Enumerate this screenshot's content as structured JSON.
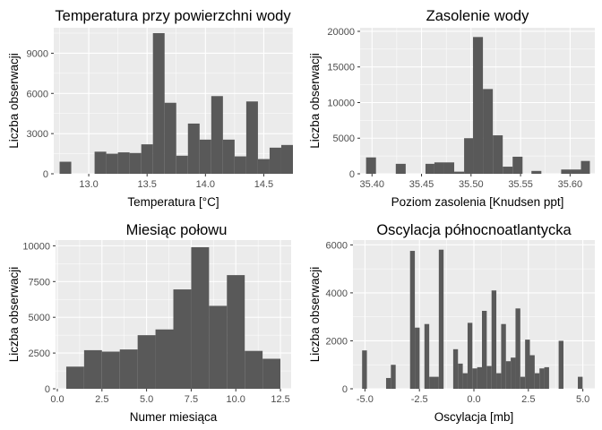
{
  "colors": {
    "panel_background": "#ebebeb",
    "grid_major": "#ffffff",
    "bar_fill": "#595959",
    "tick_label": "#4d4d4d",
    "tick_mark": "#333333",
    "text": "#000000"
  },
  "chart_data": [
    {
      "type": "bar",
      "title": "Temperatura przy powierzchni wody",
      "xlabel": "Temperatura [°C]",
      "ylabel": "Liczba obserwacji",
      "xlim": [
        12.7,
        14.75
      ],
      "ylim": [
        0,
        10900
      ],
      "x_ticks": [
        13.0,
        13.5,
        14.0,
        14.5
      ],
      "x_tick_labels": [
        "13.0",
        "13.5",
        "14.0",
        "14.5"
      ],
      "y_ticks": [
        0,
        3000,
        6000,
        9000
      ],
      "y_tick_labels": [
        "0",
        "3000",
        "6000",
        "9000"
      ],
      "grid": true,
      "legend": "none",
      "bins": [
        {
          "x0": 12.75,
          "x1": 12.85,
          "value": 900
        },
        {
          "x0": 13.05,
          "x1": 13.15,
          "value": 1650
        },
        {
          "x0": 13.15,
          "x1": 13.25,
          "value": 1500
        },
        {
          "x0": 13.25,
          "x1": 13.35,
          "value": 1600
        },
        {
          "x0": 13.35,
          "x1": 13.45,
          "value": 1550
        },
        {
          "x0": 13.45,
          "x1": 13.55,
          "value": 2200
        },
        {
          "x0": 13.55,
          "x1": 13.65,
          "value": 10500
        },
        {
          "x0": 13.65,
          "x1": 13.75,
          "value": 5300
        },
        {
          "x0": 13.75,
          "x1": 13.85,
          "value": 1350
        },
        {
          "x0": 13.85,
          "x1": 13.95,
          "value": 3750
        },
        {
          "x0": 13.95,
          "x1": 14.05,
          "value": 2550
        },
        {
          "x0": 14.05,
          "x1": 14.15,
          "value": 5800
        },
        {
          "x0": 14.15,
          "x1": 14.25,
          "value": 2550
        },
        {
          "x0": 14.25,
          "x1": 14.35,
          "value": 1300
        },
        {
          "x0": 14.35,
          "x1": 14.45,
          "value": 5400
        },
        {
          "x0": 14.45,
          "x1": 14.55,
          "value": 1100
        },
        {
          "x0": 14.55,
          "x1": 14.65,
          "value": 1950
        },
        {
          "x0": 14.65,
          "x1": 14.75,
          "value": 2150
        }
      ]
    },
    {
      "type": "bar",
      "title": "Zasolenie wody",
      "xlabel": "Poziom zasolenia [Knudsen ppt]",
      "ylabel": "Liczba obserwacji",
      "xlim": [
        35.388,
        35.625
      ],
      "ylim": [
        0,
        20500
      ],
      "x_ticks": [
        35.4,
        35.45,
        35.5,
        35.55,
        35.6
      ],
      "x_tick_labels": [
        "35.40",
        "35.45",
        "35.50",
        "35.55",
        "35.60"
      ],
      "y_ticks": [
        0,
        5000,
        10000,
        15000,
        20000
      ],
      "y_tick_labels": [
        "0",
        "5000",
        "10000",
        "15000",
        "20000"
      ],
      "grid": true,
      "legend": "none",
      "bins": [
        {
          "x0": 35.394,
          "x1": 35.404,
          "value": 2300
        },
        {
          "x0": 35.424,
          "x1": 35.434,
          "value": 1400
        },
        {
          "x0": 35.454,
          "x1": 35.463,
          "value": 1400
        },
        {
          "x0": 35.463,
          "x1": 35.473,
          "value": 1600
        },
        {
          "x0": 35.473,
          "x1": 35.483,
          "value": 1600
        },
        {
          "x0": 35.483,
          "x1": 35.493,
          "value": 300
        },
        {
          "x0": 35.493,
          "x1": 35.502,
          "value": 5000
        },
        {
          "x0": 35.502,
          "x1": 35.512,
          "value": 19200
        },
        {
          "x0": 35.512,
          "x1": 35.522,
          "value": 11900
        },
        {
          "x0": 35.522,
          "x1": 35.532,
          "value": 5400
        },
        {
          "x0": 35.532,
          "x1": 35.542,
          "value": 1000
        },
        {
          "x0": 35.542,
          "x1": 35.552,
          "value": 2400
        },
        {
          "x0": 35.561,
          "x1": 35.571,
          "value": 400
        },
        {
          "x0": 35.591,
          "x1": 35.601,
          "value": 600
        },
        {
          "x0": 35.601,
          "x1": 35.611,
          "value": 600
        },
        {
          "x0": 35.611,
          "x1": 35.62,
          "value": 1800
        }
      ]
    },
    {
      "type": "bar",
      "title": "Miesiąc połowu",
      "xlabel": "Numer miesiąca",
      "ylabel": "Liczba obserwacji",
      "xlim": [
        -0.1,
        13.1
      ],
      "ylim": [
        0,
        10400
      ],
      "x_ticks": [
        0.0,
        2.5,
        5.0,
        7.5,
        10.0,
        12.5
      ],
      "x_tick_labels": [
        "0.0",
        "2.5",
        "5.0",
        "7.5",
        "10.0",
        "12.5"
      ],
      "y_ticks": [
        0,
        2500,
        5000,
        7500,
        10000
      ],
      "y_tick_labels": [
        "0",
        "2500",
        "5000",
        "7500",
        "10000"
      ],
      "grid": true,
      "legend": "none",
      "bins": [
        {
          "x0": 0.5,
          "x1": 1.5,
          "value": 1550
        },
        {
          "x0": 1.5,
          "x1": 2.5,
          "value": 2700
        },
        {
          "x0": 2.5,
          "x1": 3.5,
          "value": 2600
        },
        {
          "x0": 3.5,
          "x1": 4.5,
          "value": 2750
        },
        {
          "x0": 4.5,
          "x1": 5.5,
          "value": 3750
        },
        {
          "x0": 5.5,
          "x1": 6.5,
          "value": 4150
        },
        {
          "x0": 6.5,
          "x1": 7.5,
          "value": 6950
        },
        {
          "x0": 7.5,
          "x1": 8.5,
          "value": 9900
        },
        {
          "x0": 8.5,
          "x1": 9.5,
          "value": 5800
        },
        {
          "x0": 9.5,
          "x1": 10.5,
          "value": 7950
        },
        {
          "x0": 10.5,
          "x1": 11.5,
          "value": 2650
        },
        {
          "x0": 11.5,
          "x1": 12.5,
          "value": 2100
        }
      ]
    },
    {
      "type": "bar",
      "title": "Oscylacja północnoatlantycka",
      "xlabel": "Oscylacja [mb]",
      "ylabel": "Liczba obserwacji",
      "xlim": [
        -5.55,
        5.55
      ],
      "ylim": [
        0,
        6200
      ],
      "x_ticks": [
        -5.0,
        -2.5,
        0.0,
        2.5,
        5.0
      ],
      "x_tick_labels": [
        "-5.0",
        "-2.5",
        "0.0",
        "2.5",
        "5.0"
      ],
      "y_ticks": [
        0,
        2000,
        4000,
        6000
      ],
      "y_tick_labels": [
        "0",
        "2000",
        "4000",
        "6000"
      ],
      "grid": true,
      "legend": "none",
      "bins": [
        {
          "x0": -5.13,
          "x1": -4.91,
          "value": 1600
        },
        {
          "x0": -4.03,
          "x1": -3.81,
          "value": 450
        },
        {
          "x0": -3.81,
          "x1": -3.59,
          "value": 1000
        },
        {
          "x0": -2.93,
          "x1": -2.71,
          "value": 5750
        },
        {
          "x0": -2.71,
          "x1": -2.49,
          "value": 2550
        },
        {
          "x0": -2.27,
          "x1": -2.05,
          "value": 2700
        },
        {
          "x0": -2.05,
          "x1": -1.83,
          "value": 500
        },
        {
          "x0": -1.83,
          "x1": -1.61,
          "value": 500
        },
        {
          "x0": -1.61,
          "x1": -1.39,
          "value": 5800
        },
        {
          "x0": -0.95,
          "x1": -0.73,
          "value": 1650
        },
        {
          "x0": -0.73,
          "x1": -0.51,
          "value": 1050
        },
        {
          "x0": -0.51,
          "x1": -0.29,
          "value": 650
        },
        {
          "x0": -0.29,
          "x1": -0.07,
          "value": 2750
        },
        {
          "x0": -0.07,
          "x1": 0.15,
          "value": 850
        },
        {
          "x0": 0.15,
          "x1": 0.37,
          "value": 900
        },
        {
          "x0": 0.37,
          "x1": 0.59,
          "value": 3250
        },
        {
          "x0": 0.59,
          "x1": 0.81,
          "value": 950
        },
        {
          "x0": 0.81,
          "x1": 1.03,
          "value": 4100
        },
        {
          "x0": 1.03,
          "x1": 1.25,
          "value": 650
        },
        {
          "x0": 1.25,
          "x1": 1.47,
          "value": 2700
        },
        {
          "x0": 1.47,
          "x1": 1.69,
          "value": 1150
        },
        {
          "x0": 1.69,
          "x1": 1.91,
          "value": 1300
        },
        {
          "x0": 1.91,
          "x1": 2.13,
          "value": 3350
        },
        {
          "x0": 2.13,
          "x1": 2.35,
          "value": 500
        },
        {
          "x0": 2.35,
          "x1": 2.57,
          "value": 2050
        },
        {
          "x0": 2.57,
          "x1": 2.79,
          "value": 1400
        },
        {
          "x0": 2.79,
          "x1": 3.01,
          "value": 650
        },
        {
          "x0": 3.01,
          "x1": 3.23,
          "value": 850
        },
        {
          "x0": 3.23,
          "x1": 3.45,
          "value": 900
        },
        {
          "x0": 3.89,
          "x1": 4.11,
          "value": 2000
        },
        {
          "x0": 4.77,
          "x1": 4.99,
          "value": 500
        }
      ]
    }
  ]
}
